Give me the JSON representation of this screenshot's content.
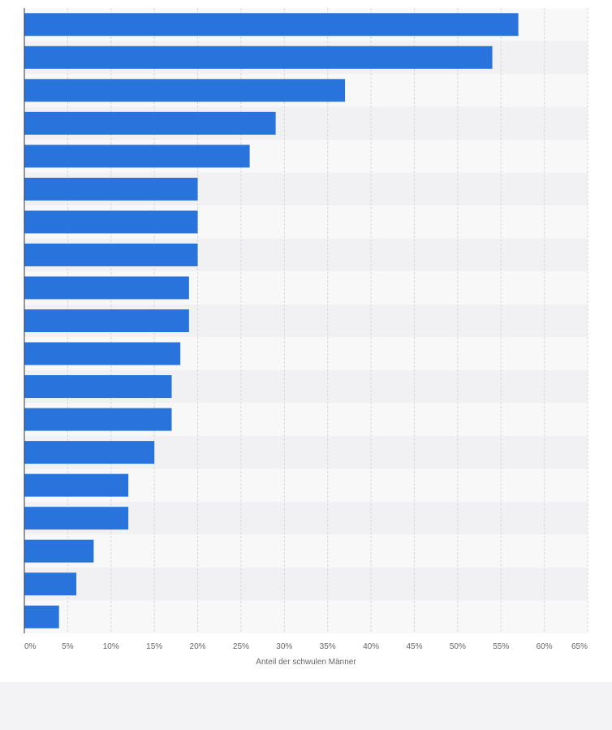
{
  "colors": {
    "bar": "#2874dc",
    "band_light": "#f8f8f9",
    "band_dark": "#f1f1f3",
    "grid": "#d7d7d7",
    "axis": "#333333"
  },
  "chart_data": {
    "type": "bar",
    "orientation": "horizontal",
    "title": "",
    "xlabel": "Anteil der schwulen Männer",
    "ylabel": "",
    "xlim": [
      0,
      65
    ],
    "xticks": [
      "0%",
      "5%",
      "10%",
      "15%",
      "20%",
      "25%",
      "30%",
      "35%",
      "40%",
      "45%",
      "50%",
      "55%",
      "60%",
      "65%"
    ],
    "grid": true,
    "legend": "none",
    "values": [
      57,
      54,
      37,
      29,
      26,
      20,
      20,
      20,
      19,
      19,
      18,
      17,
      17,
      15,
      12,
      12,
      8,
      6,
      4
    ]
  }
}
